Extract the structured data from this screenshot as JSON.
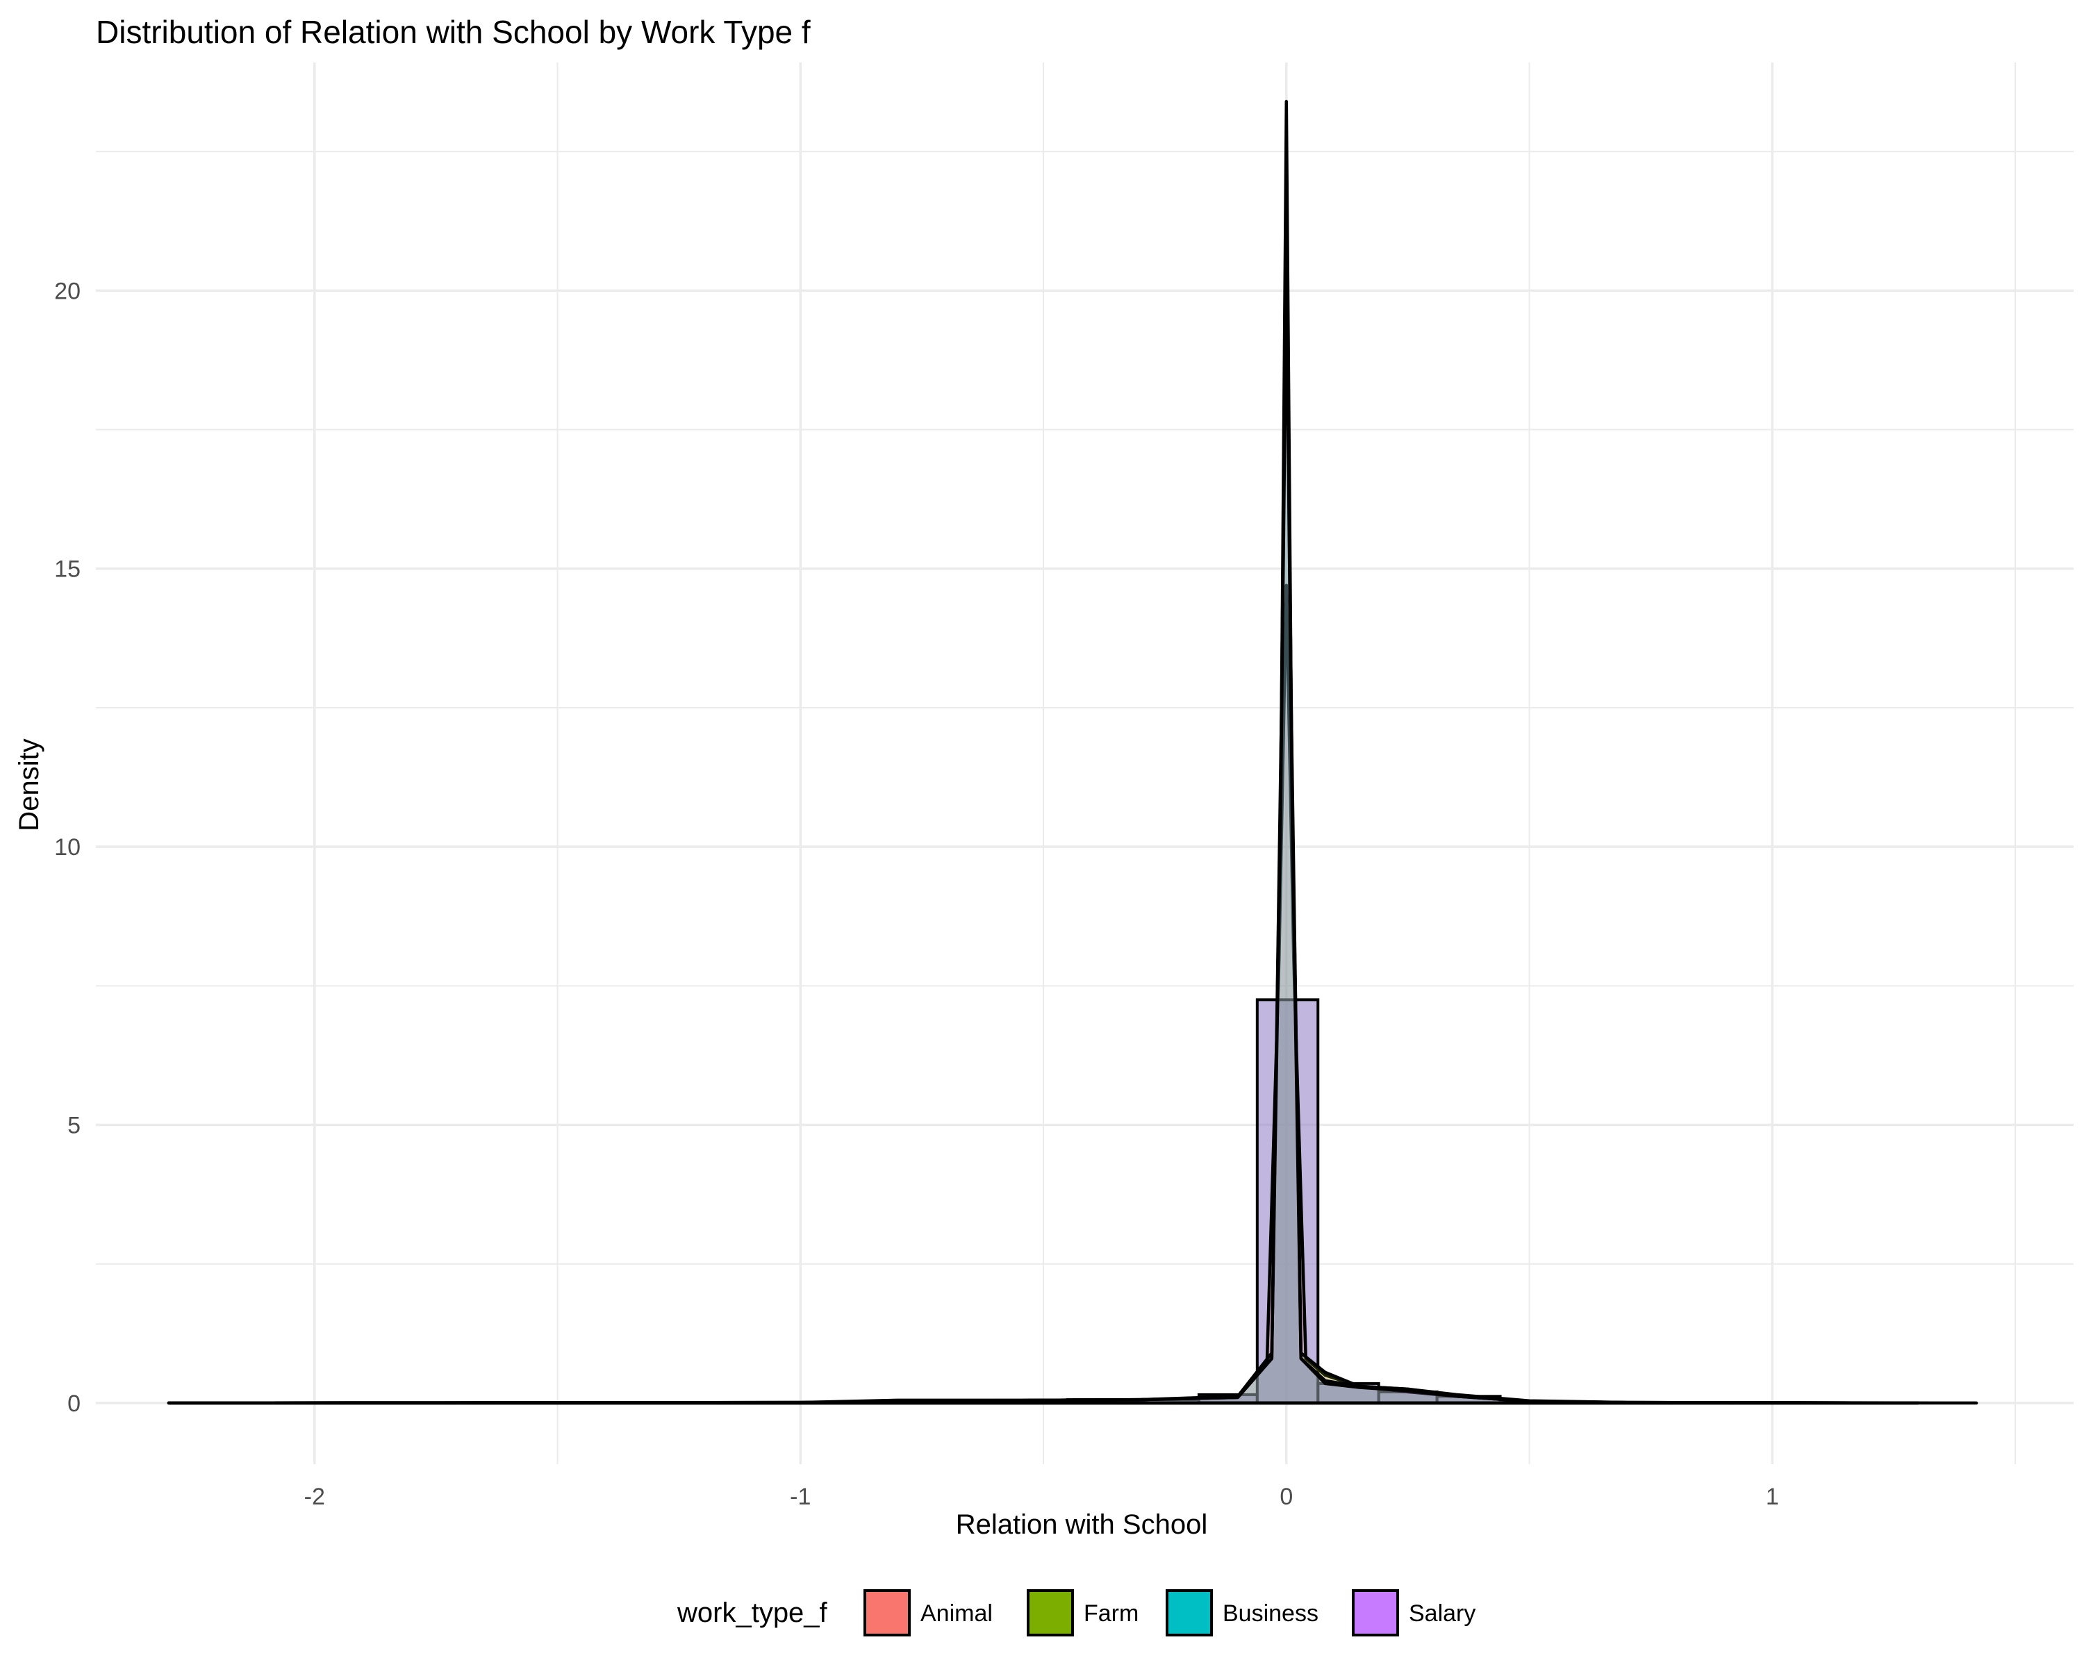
{
  "chart_data": {
    "type": "area",
    "subtype": "histogram_with_density_overlay",
    "title": "Distribution of Relation with School by Work Type f",
    "xlabel": "Relation with School",
    "ylabel": "Density",
    "xlim": [
      -2.45,
      1.62
    ],
    "ylim": [
      -1.1,
      24.1
    ],
    "x_ticks": [
      -2,
      -1,
      0,
      1
    ],
    "x_tick_labels": [
      "-2",
      "-1",
      "0",
      "1"
    ],
    "y_ticks": [
      0,
      5,
      10,
      15,
      20
    ],
    "y_tick_labels": [
      "0",
      "5",
      "10",
      "15",
      "20"
    ],
    "grid": true,
    "legend": {
      "title": "work_type_f",
      "position": "bottom"
    },
    "bar_fill": "#8e7cc3",
    "histogram": {
      "bins": [
        {
          "x0": -0.6,
          "x1": -0.45,
          "density": 0.05
        },
        {
          "x0": -0.45,
          "x1": -0.3,
          "density": 0.06
        },
        {
          "x0": -0.3,
          "x1": -0.18,
          "density": 0.06
        },
        {
          "x0": -0.18,
          "x1": -0.06,
          "density": 0.15
        },
        {
          "x0": -0.06,
          "x1": 0.065,
          "density": 7.25
        },
        {
          "x0": 0.065,
          "x1": 0.19,
          "density": 0.35
        },
        {
          "x0": 0.19,
          "x1": 0.31,
          "density": 0.2
        },
        {
          "x0": 0.31,
          "x1": 0.44,
          "density": 0.12
        },
        {
          "x0": 0.44,
          "x1": 0.56,
          "density": 0.03
        }
      ]
    },
    "series": [
      {
        "name": "Animal",
        "color": "#f8766d",
        "x": [
          -2.3,
          -1.0,
          -0.8,
          -0.5,
          -0.3,
          -0.1,
          -0.04,
          -0.015,
          0.0,
          0.015,
          0.04,
          0.08,
          0.15,
          0.25,
          0.35,
          0.5,
          0.7,
          1.0,
          1.3
        ],
        "y": [
          0,
          0.01,
          0.05,
          0.05,
          0.06,
          0.1,
          0.7,
          8.0,
          14.7,
          8.0,
          0.8,
          0.5,
          0.3,
          0.25,
          0.15,
          0.04,
          0.01,
          0.005,
          0
        ]
      },
      {
        "name": "Farm",
        "color": "#7cae00",
        "x": [
          -2.3,
          -1.0,
          -0.7,
          -0.5,
          -0.3,
          -0.1,
          -0.03,
          -0.012,
          0.0,
          0.012,
          0.03,
          0.08,
          0.15,
          0.25,
          0.35,
          0.5,
          0.7,
          1.0,
          1.3
        ],
        "y": [
          0,
          0.01,
          0.03,
          0.05,
          0.06,
          0.12,
          0.9,
          11.0,
          20.8,
          11.0,
          0.9,
          0.55,
          0.3,
          0.25,
          0.12,
          0.03,
          0.01,
          0.005,
          0
        ]
      },
      {
        "name": "Business",
        "color": "#00bfc4",
        "x": [
          -2.3,
          -1.0,
          -0.7,
          -0.5,
          -0.3,
          -0.1,
          -0.03,
          -0.01,
          0.0,
          0.01,
          0.03,
          0.08,
          0.15,
          0.25,
          0.35,
          0.5,
          0.7,
          1.0,
          1.42
        ],
        "y": [
          0,
          0.01,
          0.03,
          0.05,
          0.06,
          0.1,
          0.8,
          12.5,
          23.4,
          12.5,
          0.8,
          0.4,
          0.3,
          0.2,
          0.12,
          0.03,
          0.01,
          0.005,
          0
        ]
      },
      {
        "name": "Salary",
        "color": "#c77cff",
        "x": [
          -2.3,
          -1.0,
          -0.7,
          -0.5,
          -0.3,
          -0.1,
          -0.03,
          -0.012,
          0.0,
          0.012,
          0.03,
          0.08,
          0.15,
          0.25,
          0.35,
          0.5,
          0.7,
          1.0,
          1.3
        ],
        "y": [
          0,
          0.01,
          0.03,
          0.05,
          0.06,
          0.1,
          0.8,
          10.5,
          20.2,
          10.5,
          0.8,
          0.35,
          0.28,
          0.22,
          0.12,
          0.03,
          0.01,
          0.005,
          0
        ]
      }
    ]
  }
}
